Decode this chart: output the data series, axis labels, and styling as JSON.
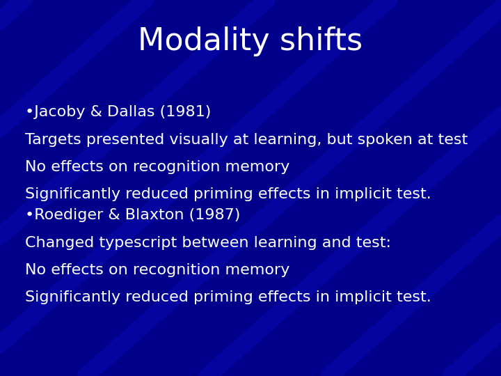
{
  "title": "Modality shifts",
  "title_fontsize": 32,
  "title_color": "#ffffff",
  "background_color": "#00008B",
  "text_color": "#ffffff",
  "body_fontsize": 16,
  "bullet1_header": "•Jacoby & Dallas (1981)",
  "bullet1_lines": [
    "Targets presented visually at learning, but spoken at test",
    "No effects on recognition memory",
    "Significantly reduced priming effects in implicit test."
  ],
  "bullet2_header": "•Roediger & Blaxton (1987)",
  "bullet2_lines": [
    "Changed typescript between learning and test:",
    "No effects on recognition memory",
    "Significantly reduced priming effects in implicit test."
  ]
}
